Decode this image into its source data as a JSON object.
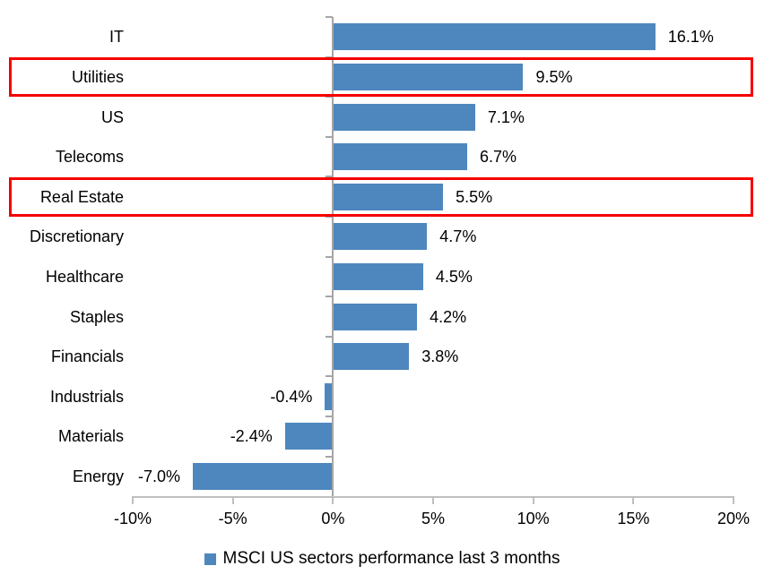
{
  "chart_data": {
    "type": "bar",
    "orientation": "horizontal",
    "title": "",
    "categories": [
      "IT",
      "Utilities",
      "US",
      "Telecoms",
      "Real Estate",
      "Discretionary",
      "Healthcare",
      "Staples",
      "Financials",
      "Industrials",
      "Materials",
      "Energy"
    ],
    "values": [
      16.1,
      9.5,
      7.1,
      6.7,
      5.5,
      4.7,
      4.5,
      4.2,
      3.8,
      -0.4,
      -2.4,
      -7.0
    ],
    "data_labels": [
      "16.1%",
      "9.5%",
      "7.1%",
      "6.7%",
      "5.5%",
      "4.7%",
      "4.5%",
      "4.2%",
      "3.8%",
      "-0.4%",
      "-2.4%",
      "-7.0%"
    ],
    "xlim": [
      -10,
      20
    ],
    "x_tick_values": [
      -10,
      -5,
      0,
      5,
      10,
      15,
      20
    ],
    "x_tick_labels": [
      "-10%",
      "-5%",
      "0%",
      "5%",
      "10%",
      "15%",
      "20%"
    ],
    "grid": false,
    "legend": "MSCI US sectors performance last 3 months",
    "legend_position": "bottom",
    "bar_color": "#4e87be",
    "highlight_color": "#f40000",
    "highlighted_categories": [
      "Utilities",
      "Real Estate"
    ]
  }
}
